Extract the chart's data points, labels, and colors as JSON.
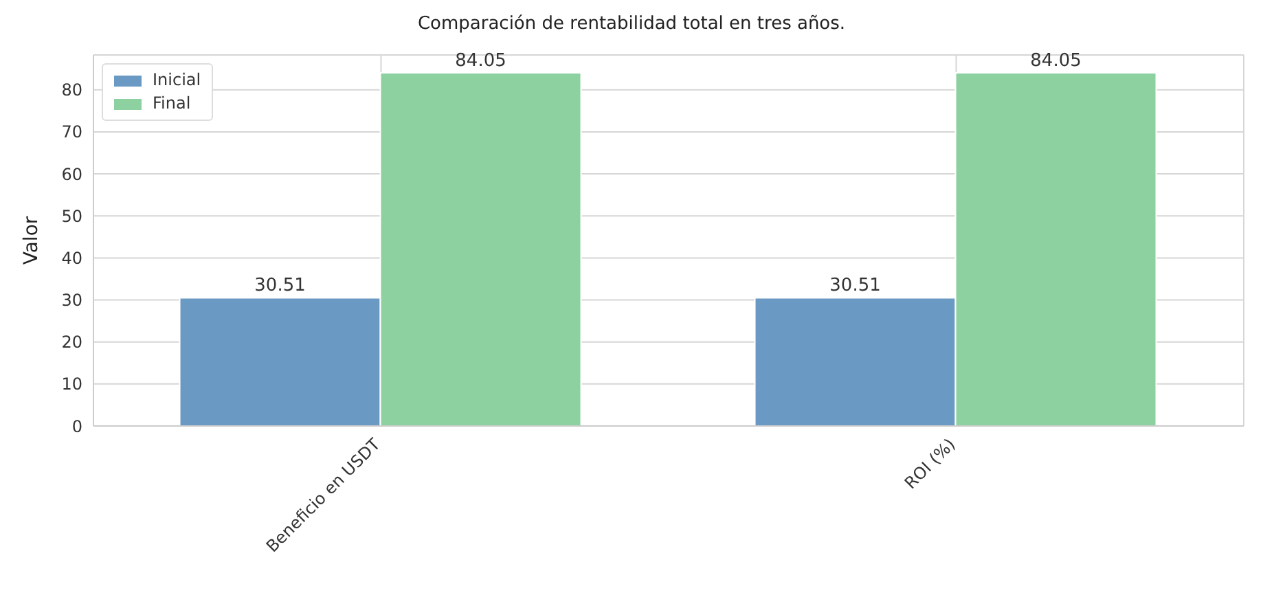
{
  "chart_data": {
    "type": "bar",
    "title": "Comparación de rentabilidad total en tres años.",
    "ylabel": "Valor",
    "categories": [
      "Beneficio en USDT",
      "ROI (%)"
    ],
    "series": [
      {
        "name": "Inicial",
        "color": "#6a9ac4",
        "values": [
          30.51,
          30.51
        ]
      },
      {
        "name": "Final",
        "color": "#8dd1a1",
        "values": [
          84.05,
          84.05
        ]
      }
    ],
    "ylim": [
      0,
      88.3
    ],
    "yticks": [
      0,
      10,
      20,
      30,
      40,
      50,
      60,
      70,
      80
    ],
    "grid": true,
    "legend": "top left",
    "data_labels": true
  }
}
